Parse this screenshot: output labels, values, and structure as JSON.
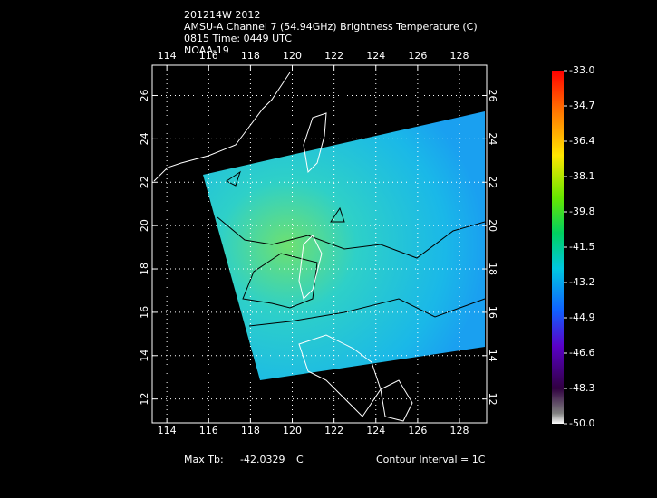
{
  "header": {
    "lines": [
      "201214W 2012",
      "AMSU-A Channel 7 (54.94GHz) Brightness Temperature (C)",
      "0815 Time: 0449 UTC",
      "NOAA-19"
    ]
  },
  "map": {
    "xlim": [
      113.3,
      129.3
    ],
    "ylim": [
      10.9,
      27.4
    ],
    "lon_ticks": [
      114,
      116,
      118,
      120,
      122,
      124,
      126,
      128
    ],
    "lat_ticks": [
      12,
      14,
      16,
      18,
      20,
      22,
      24,
      26
    ],
    "grid": true
  },
  "colorbar": {
    "clim": [
      -50,
      -33
    ],
    "ticks": [
      {
        "value": -33,
        "label": "-33.0"
      },
      {
        "value": -34.7,
        "label": "-34.7"
      },
      {
        "value": -36.4,
        "label": "-36.4"
      },
      {
        "value": -38.1,
        "label": "-38.1"
      },
      {
        "value": -39.8,
        "label": "-39.8"
      },
      {
        "value": -41.5,
        "label": "-41.5"
      },
      {
        "value": -43.2,
        "label": "-43.2"
      },
      {
        "value": -44.9,
        "label": "-44.9"
      },
      {
        "value": -46.6,
        "label": "-46.6"
      },
      {
        "value": -48.3,
        "label": "-48.3"
      },
      {
        "value": -50,
        "label": "-50.0"
      }
    ]
  },
  "footer": {
    "max_label": "Max Tb:",
    "max_value": -42.0329,
    "max_unit": "C",
    "contour": "Contour Interval = 1C"
  }
}
